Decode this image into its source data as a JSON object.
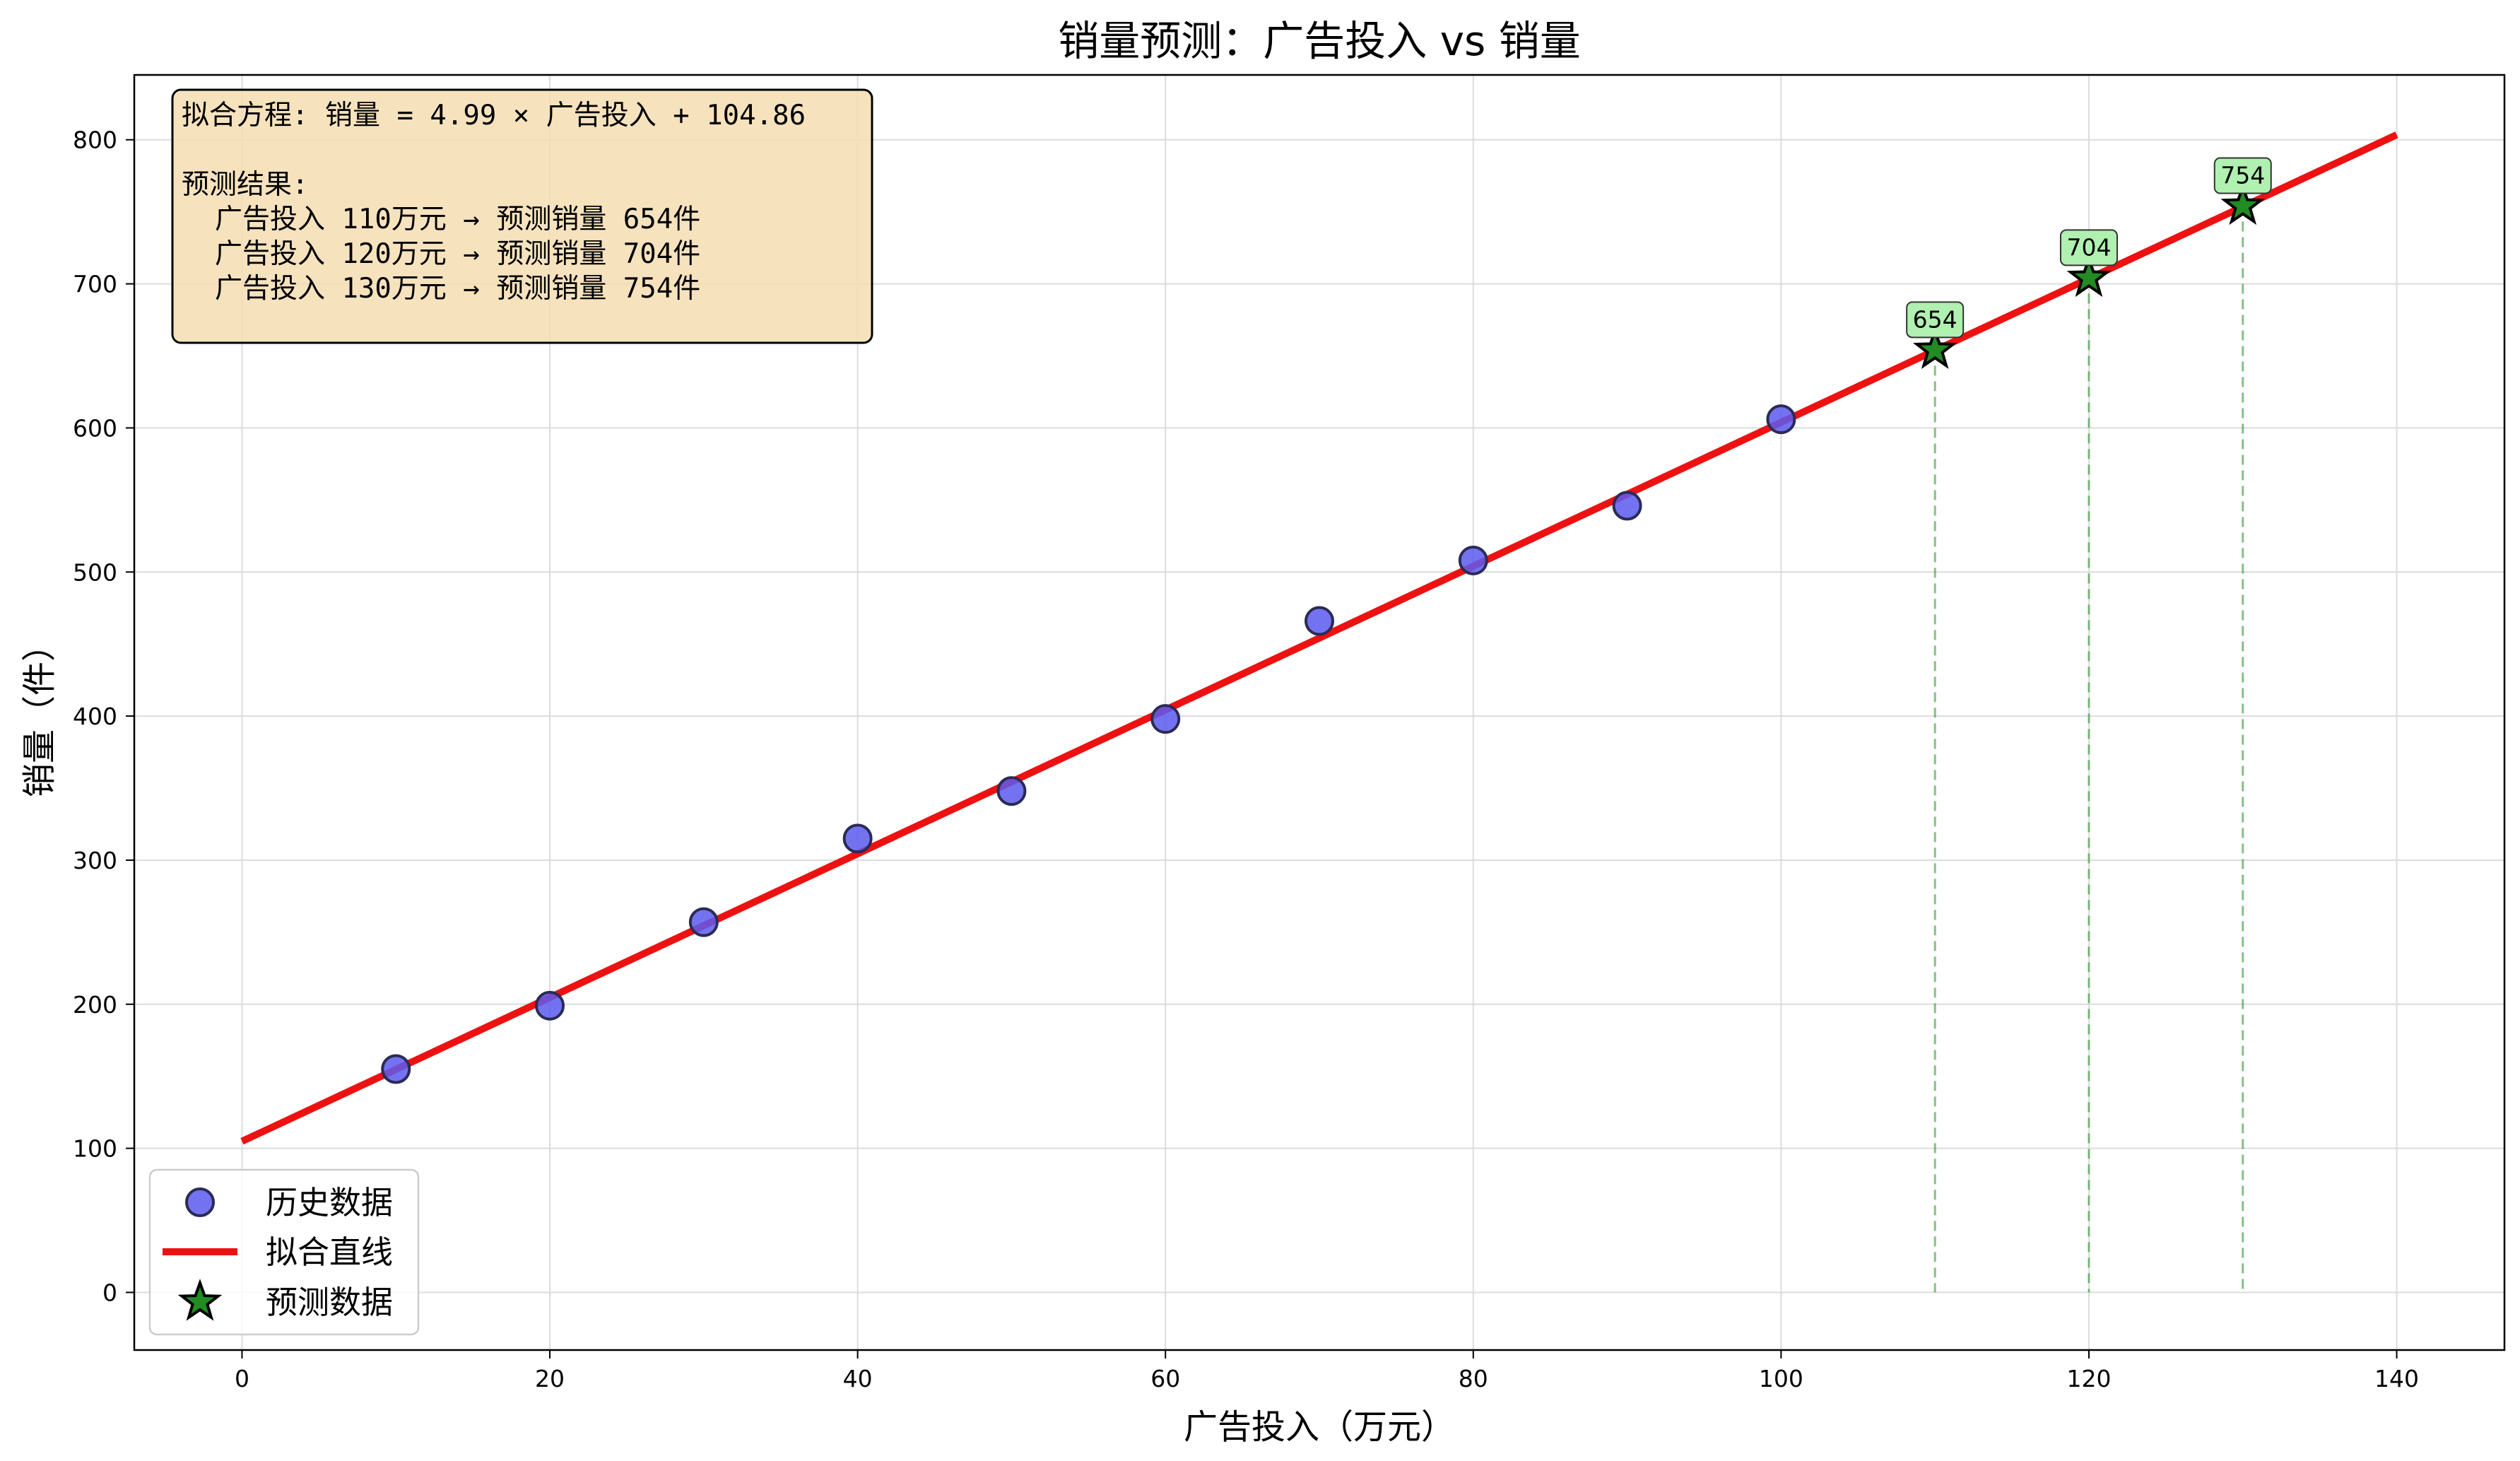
{
  "chart_data": {
    "type": "scatter",
    "title": "销量预测：广告投入 vs 销量",
    "xlabel": "广告投入（万元）",
    "ylabel": "销量（件）",
    "xlim": [
      -7,
      147
    ],
    "ylim": [
      -40,
      845
    ],
    "xticks": [
      0,
      20,
      40,
      60,
      80,
      100,
      120,
      140
    ],
    "yticks": [
      0,
      100,
      200,
      300,
      400,
      500,
      600,
      700,
      800
    ],
    "grid": true,
    "legend_position": "lower-left",
    "colors": {
      "historical": "#5b5bf0",
      "fit_line": "#ee1111",
      "prediction": "#228b22",
      "prediction_label_bg": "#b0f0b0",
      "info_box_bg": "#f5deb3"
    },
    "series": [
      {
        "name": "历史数据",
        "kind": "scatter",
        "x": [
          10,
          20,
          30,
          40,
          50,
          60,
          70,
          80,
          90,
          100
        ],
        "y": [
          155,
          199,
          257,
          315,
          348,
          398,
          466,
          508,
          546,
          606
        ]
      },
      {
        "name": "拟合直线",
        "kind": "line",
        "x": [
          0,
          140
        ],
        "y": [
          104.86,
          803.46
        ]
      },
      {
        "name": "预测数据",
        "kind": "scatter-star",
        "x": [
          110,
          120,
          130
        ],
        "y": [
          654,
          704,
          754
        ],
        "labels": [
          "654",
          "704",
          "754"
        ]
      }
    ],
    "annotation": {
      "lines": [
        "拟合方程: 销量 = 4.99 × 广告投入 + 104.86",
        "",
        "预测结果:",
        "  广告投入 110万元 → 预测销量 654件",
        "  广告投入 120万元 → 预测销量 704件",
        "  广告投入 130万元 → 预测销量 754件"
      ]
    },
    "legend": [
      "历史数据",
      "拟合直线",
      "预测数据"
    ]
  }
}
